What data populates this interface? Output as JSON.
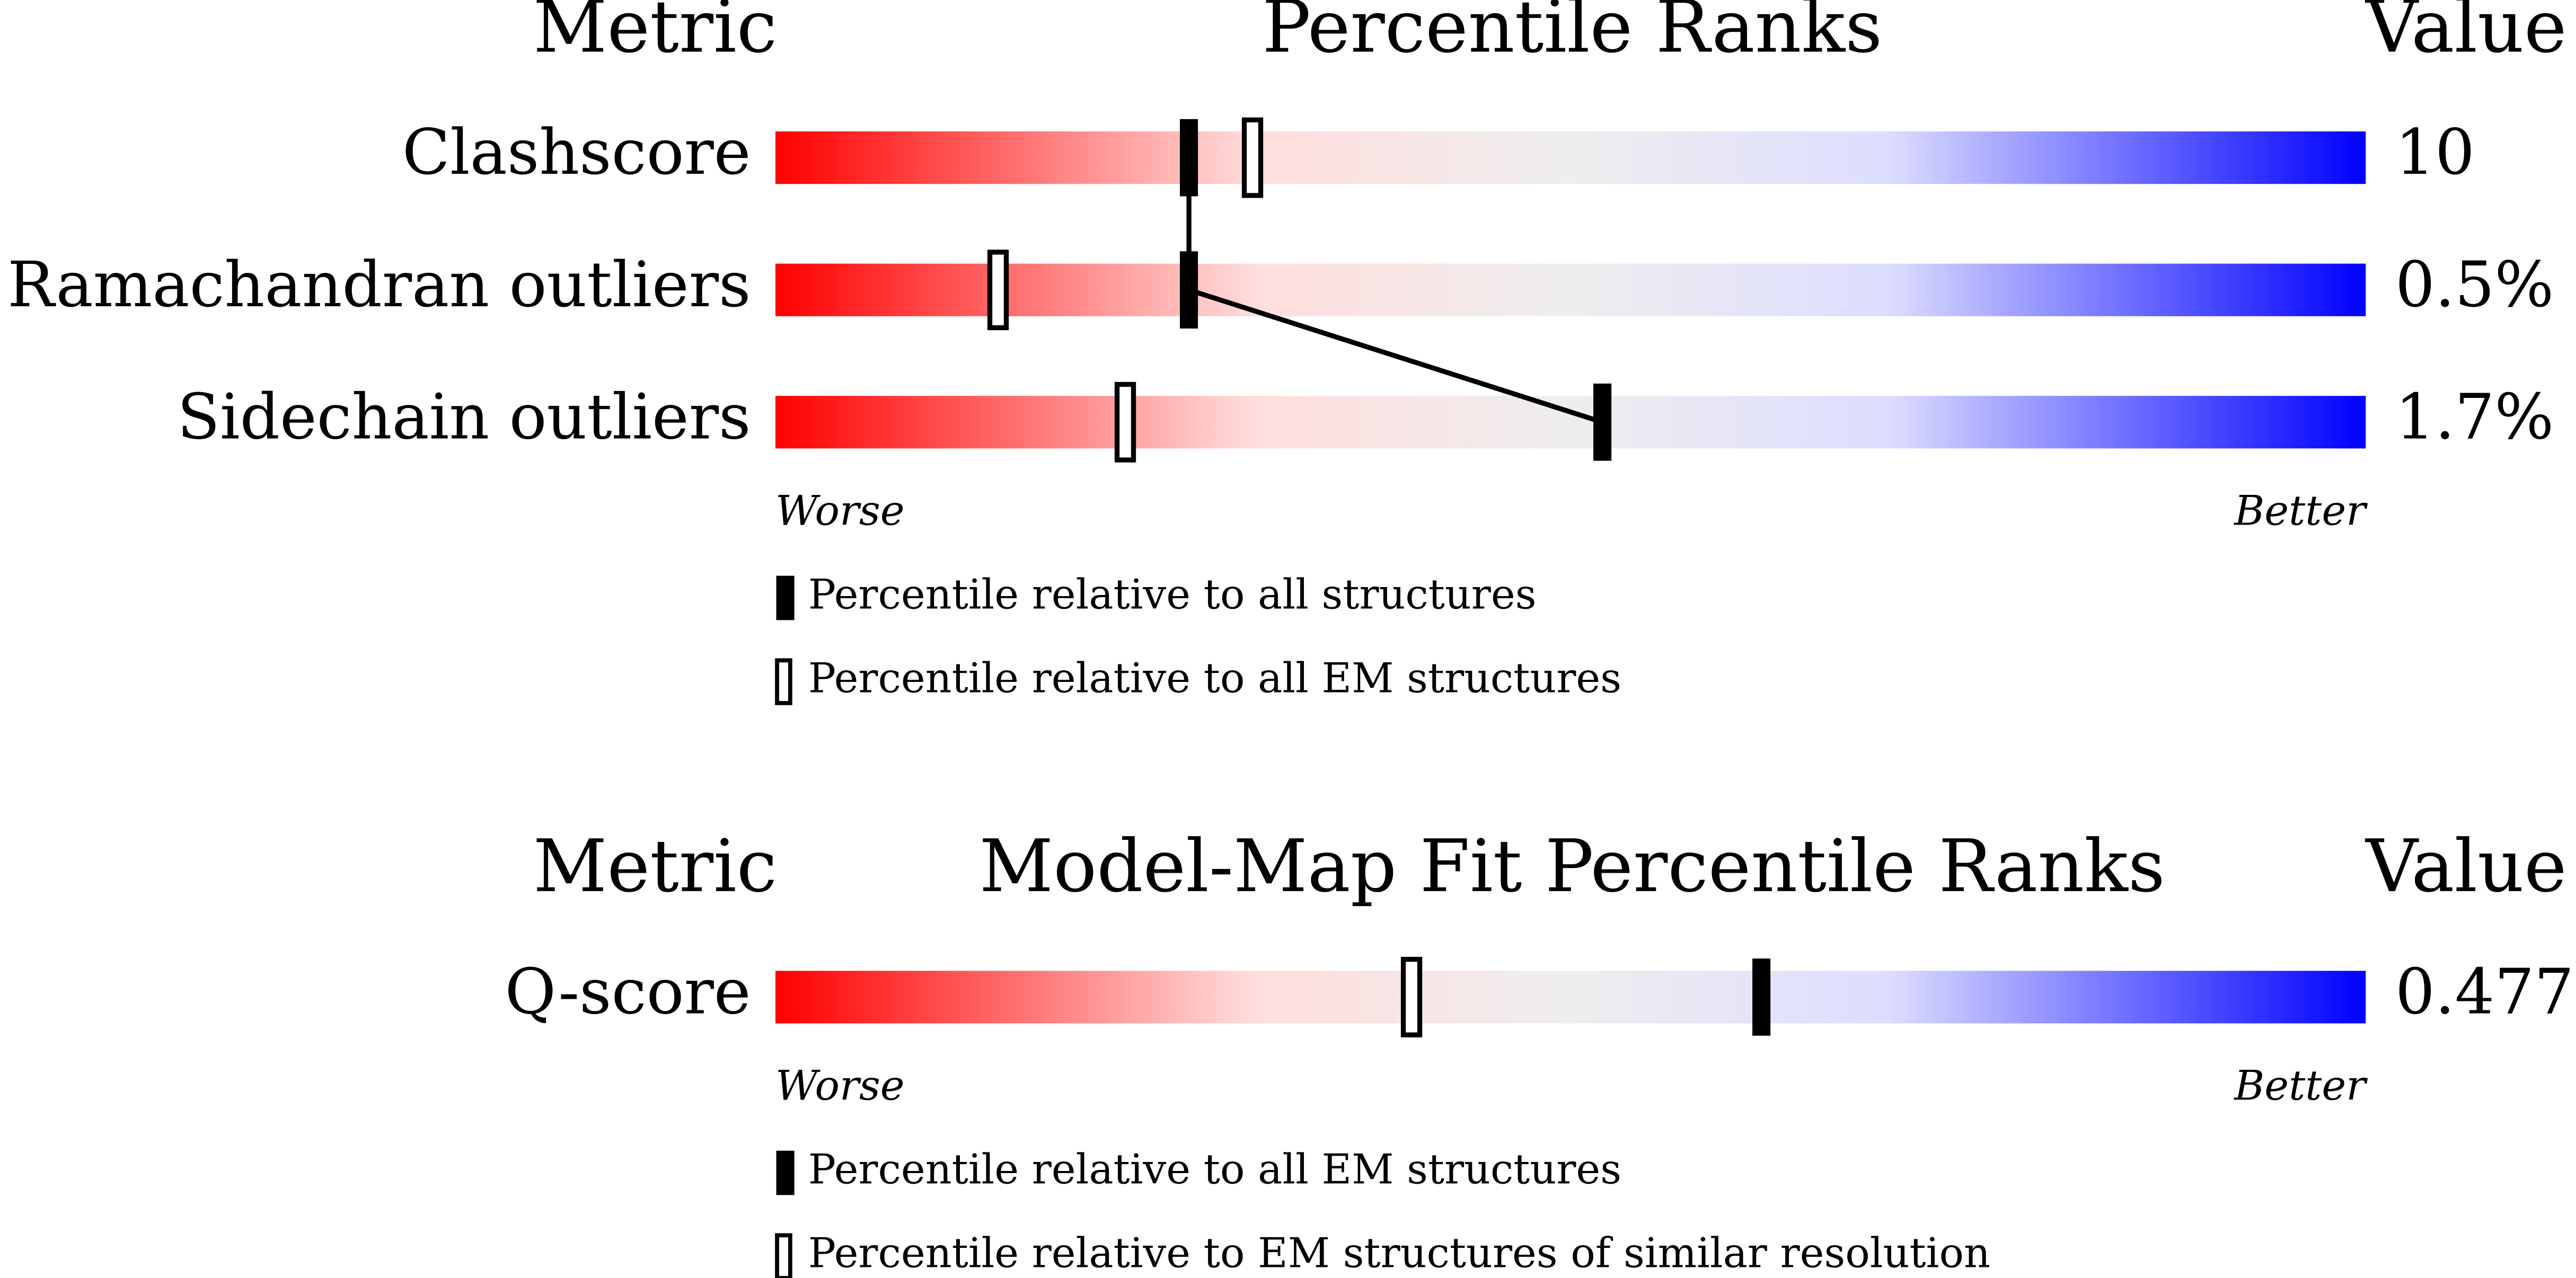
{
  "chart_data": [
    {
      "type": "percentile-slider",
      "header": {
        "metric": "Metric",
        "title": "Percentile Ranks",
        "value": "Value"
      },
      "metrics": [
        "Clashscore",
        "Ramachandran outliers",
        "Sidechain outliers"
      ],
      "metric_values": [
        "10",
        "0.5%",
        "1.7%"
      ],
      "xlim": [
        0,
        100
      ],
      "axis_labels": {
        "low": "Worse",
        "high": "Better"
      },
      "series": [
        {
          "name": "Percentile relative to all structures",
          "style": "filled",
          "color": "#000000",
          "values": [
            26,
            26,
            52
          ]
        },
        {
          "name": "Percentile relative to all EM structures",
          "style": "open",
          "color": "#000000",
          "values": [
            30,
            14,
            22
          ]
        }
      ],
      "connect_series": 0
    },
    {
      "type": "percentile-slider",
      "header": {
        "metric": "Metric",
        "title": "Model-Map Fit Percentile Ranks",
        "value": "Value"
      },
      "metrics": [
        "Q-score"
      ],
      "metric_values": [
        "0.477"
      ],
      "xlim": [
        0,
        100
      ],
      "axis_labels": {
        "low": "Worse",
        "high": "Better"
      },
      "series": [
        {
          "name": "Percentile relative to all EM structures",
          "style": "filled",
          "color": "#000000",
          "values": [
            62
          ]
        },
        {
          "name": "Percentile relative to EM structures of similar resolution",
          "style": "open",
          "color": "#000000",
          "values": [
            40
          ]
        }
      ],
      "connect_series": 0
    }
  ]
}
